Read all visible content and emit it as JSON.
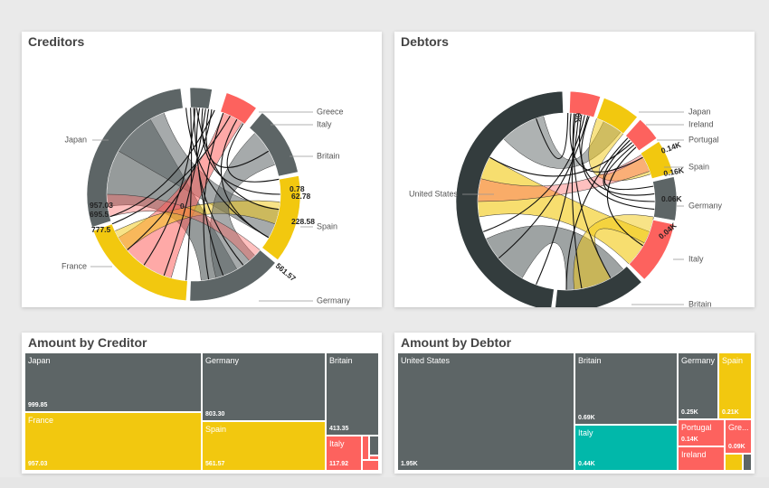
{
  "colors": {
    "grey": "#5d6566",
    "dark": "#333c3d",
    "yellow": "#f2c80f",
    "red": "#fd625e",
    "teal": "#01b8aa"
  },
  "creditors": {
    "title": "Creditors",
    "chart_data": {
      "type": "chord",
      "nodes": [
        {
          "name": "Japan",
          "value": 999.85,
          "color": "grey"
        },
        {
          "name": "Greece",
          "value": 6.0,
          "color": "red"
        },
        {
          "name": "Italy",
          "value": 117.92,
          "color": "red"
        },
        {
          "name": "Britain",
          "value": 413.35,
          "color": "grey"
        },
        {
          "name": "Spain",
          "value": 561.57,
          "color": "yellow"
        },
        {
          "name": "Germany",
          "value": 803.3,
          "color": "grey"
        },
        {
          "name": "France",
          "value": 957.03,
          "color": "yellow"
        }
      ],
      "value_labels": [
        "62.78",
        "228.58",
        "561.57",
        "0.78",
        "957.03",
        "695.5",
        "777.5",
        "0"
      ]
    }
  },
  "debtors": {
    "title": "Debtors",
    "chart_data": {
      "type": "chord",
      "nodes": [
        {
          "name": "Japan",
          "value": 0.0,
          "color": "red"
        },
        {
          "name": "Ireland",
          "value": 0.06,
          "color": "red"
        },
        {
          "name": "Portugal",
          "value": 0.14,
          "color": "red"
        },
        {
          "name": "Spain",
          "value": 0.21,
          "color": "yellow"
        },
        {
          "name": "Germany",
          "value": 0.25,
          "color": "grey"
        },
        {
          "name": "Italy",
          "value": 0.44,
          "color": "red"
        },
        {
          "name": "Britain",
          "value": 0.69,
          "color": "dark"
        },
        {
          "name": "United States",
          "value": 1.95,
          "color": "dark"
        }
      ],
      "value_labels": [
        "0.16K",
        "0.14K",
        "0.04K",
        "0.06K",
        "0K"
      ]
    }
  },
  "creditor_treemap": {
    "title": "Amount by Creditor",
    "chart_data": {
      "type": "treemap",
      "items": [
        {
          "name": "Japan",
          "value": 999.85,
          "label": "999.85",
          "color": "grey"
        },
        {
          "name": "France",
          "value": 957.03,
          "label": "957.03",
          "color": "yellow"
        },
        {
          "name": "Germany",
          "value": 803.3,
          "label": "803.30",
          "color": "grey"
        },
        {
          "name": "Spain",
          "value": 561.57,
          "label": "561.57",
          "color": "yellow"
        },
        {
          "name": "Britain",
          "value": 413.35,
          "label": "413.35",
          "color": "grey"
        },
        {
          "name": "Italy",
          "value": 117.92,
          "label": "117.92",
          "color": "red"
        }
      ]
    }
  },
  "debtor_treemap": {
    "title": "Amount by Debtor",
    "chart_data": {
      "type": "treemap",
      "items": [
        {
          "name": "United States",
          "value": 1.95,
          "label": "1.95K",
          "color": "grey"
        },
        {
          "name": "Britain",
          "value": 0.69,
          "label": "0.69K",
          "color": "grey"
        },
        {
          "name": "Italy",
          "value": 0.44,
          "label": "0.44K",
          "color": "teal"
        },
        {
          "name": "Germany",
          "value": 0.25,
          "label": "0.25K",
          "color": "grey"
        },
        {
          "name": "Spain",
          "value": 0.21,
          "label": "0.21K",
          "color": "yellow"
        },
        {
          "name": "Portugal",
          "value": 0.14,
          "label": "0.14K",
          "color": "red"
        },
        {
          "name": "Ireland",
          "value": 0.06,
          "label": "",
          "color": "red"
        },
        {
          "name": "Gre...",
          "value": 0.09,
          "label": "0.09K",
          "color": "red"
        }
      ]
    }
  }
}
